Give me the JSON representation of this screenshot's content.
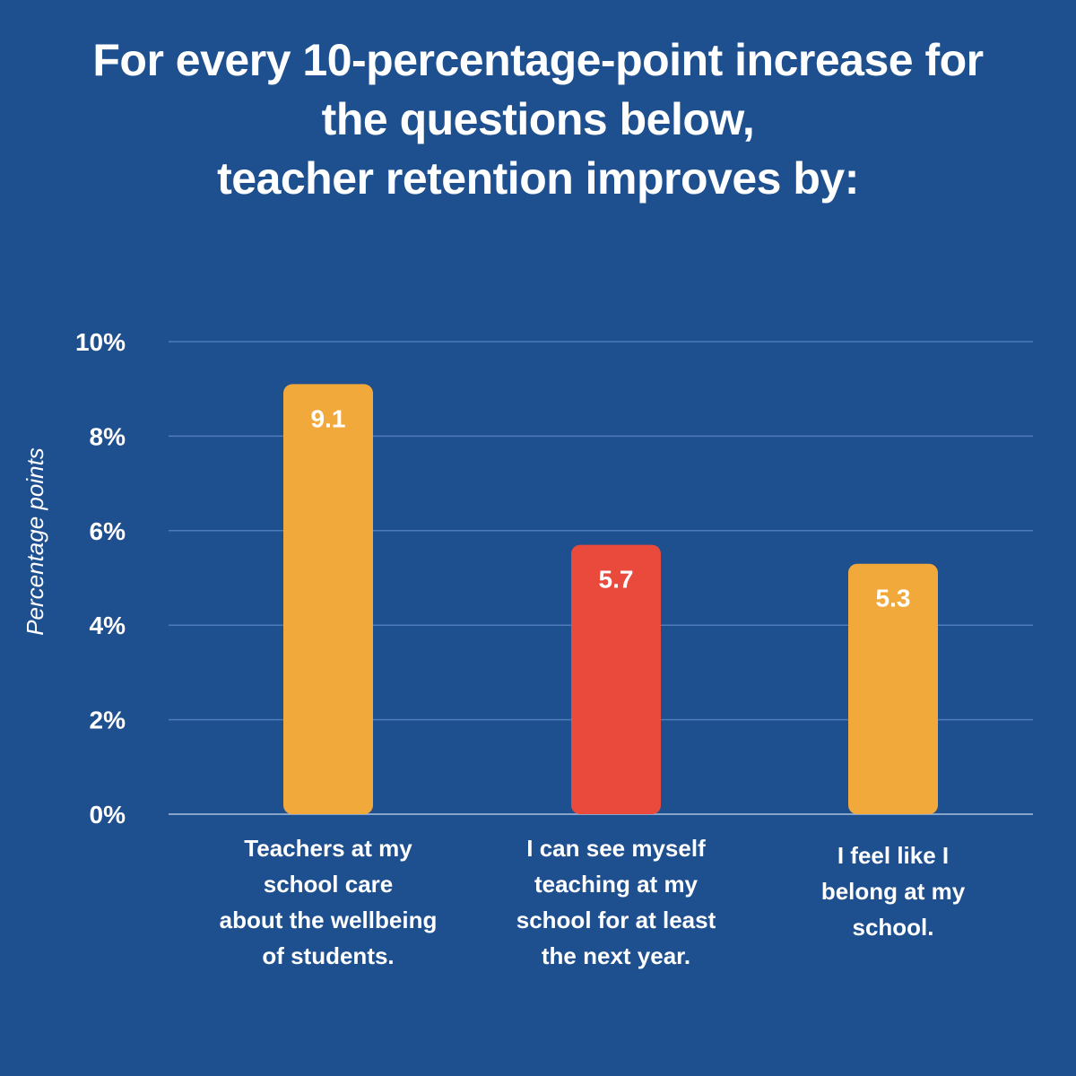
{
  "title": {
    "line1": "For every 10-percentage-point increase for",
    "line2": "the questions below,",
    "line3": "teacher retention improves by:"
  },
  "colors": {
    "background": "#1e4f8f",
    "orange": "#f2a93b",
    "red": "#ea4a3c",
    "gridline": "#4f7bb8",
    "text": "#ffffff"
  },
  "chart_data": {
    "type": "bar",
    "title": "For every 10-percentage-point increase for the questions below, teacher retention improves by:",
    "ylabel": "Percentage points",
    "xlabel": "",
    "ylim": [
      0,
      10
    ],
    "yticks": [
      "0%",
      "2%",
      "4%",
      "6%",
      "8%",
      "10%"
    ],
    "ytick_values": [
      0,
      2,
      4,
      6,
      8,
      10
    ],
    "grid": true,
    "categories": [
      "Teachers at my\nschool care\nabout the wellbeing\nof students.",
      "I can see myself\nteaching at my\nschool for at least\nthe next year.",
      "I feel like I\nbelong at my\nschool."
    ],
    "values": [
      9.1,
      5.7,
      5.3
    ],
    "data_labels": [
      "9.1",
      "5.7",
      "5.3"
    ],
    "bar_colors": [
      "#f2a93b",
      "#ea4a3c",
      "#f2a93b"
    ]
  }
}
